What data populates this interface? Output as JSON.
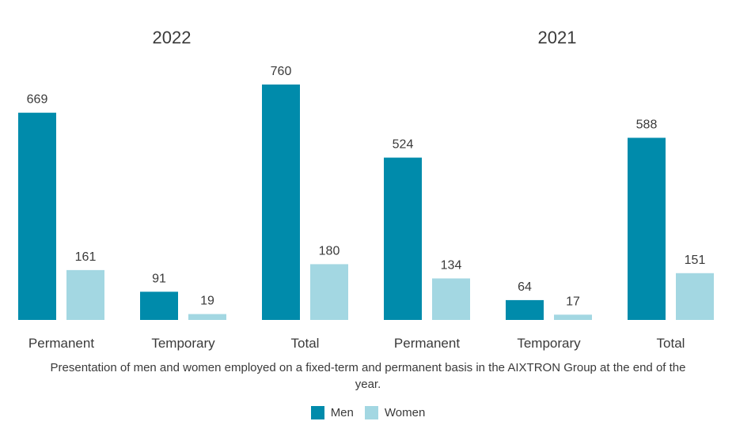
{
  "chart_data": {
    "type": "bar",
    "groups": [
      {
        "title": "2022",
        "categories": [
          "Permanent",
          "Temporary",
          "Total"
        ]
      },
      {
        "title": "2021",
        "categories": [
          "Permanent",
          "Temporary",
          "Total"
        ]
      }
    ],
    "series": [
      {
        "name": "Men",
        "color": "#008BAB",
        "values": [
          669,
          91,
          760,
          524,
          64,
          588
        ]
      },
      {
        "name": "Women",
        "color": "#A3D7E2",
        "values": [
          161,
          19,
          180,
          134,
          17,
          151
        ]
      }
    ],
    "ylim": [
      0,
      800
    ],
    "grid": false,
    "legend": "bottom",
    "caption_lines": [
      "Presentation of men and women employed on a fixed-term and permanent basis in the AIXTRON Group at the end of the",
      "year."
    ]
  }
}
